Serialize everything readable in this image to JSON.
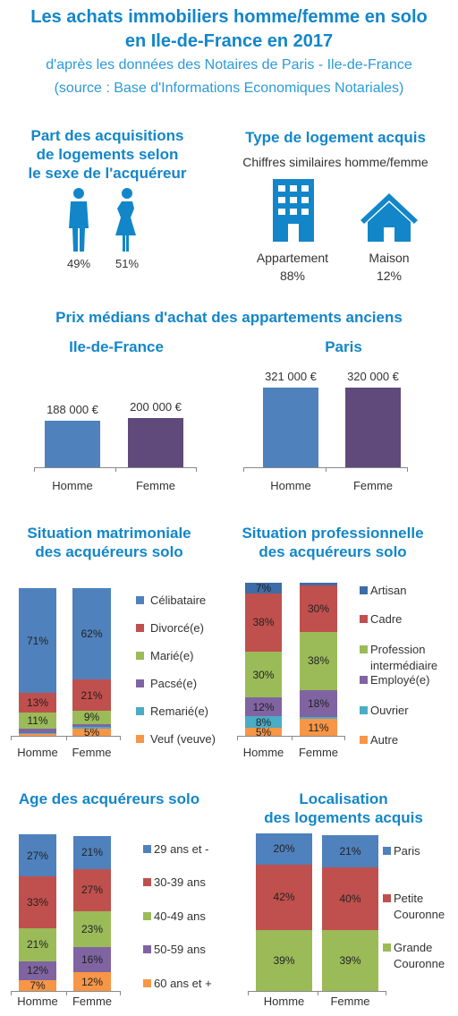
{
  "header": {
    "title": "Les achats immobiliers homme/femme en solo\nen Ile-de-France en 2017",
    "subtitle": "d'après les données des Notaires de Paris - Ile-de-France",
    "source": "(source : Base d'Informations Economiques Notariales)"
  },
  "gender": {
    "title": "Part des acquisitions\nde logements selon\nle sexe de l'acquéreur",
    "shares": [
      "49%",
      "51%"
    ]
  },
  "housing": {
    "title": "Type de logement acquis",
    "note": "Chiffres similaires homme/femme",
    "items": [
      {
        "name": "Appartement",
        "share": "88%"
      },
      {
        "name": "Maison",
        "share": "12%"
      }
    ]
  },
  "prices": {
    "title": "Prix médians d'achat des appartements anciens"
  },
  "chart_data": [
    {
      "type": "bar",
      "title": "Ile-de-France",
      "categories": [
        "Homme",
        "Femme"
      ],
      "values": [
        188000,
        200000
      ],
      "value_labels": [
        "188 000 €",
        "200 000 €"
      ],
      "colors": [
        "#4f81bd",
        "#604a7b"
      ]
    },
    {
      "type": "bar",
      "title": "Paris",
      "categories": [
        "Homme",
        "Femme"
      ],
      "values": [
        321000,
        320000
      ],
      "value_labels": [
        "321 000 €",
        "320 000 €"
      ],
      "colors": [
        "#4f81bd",
        "#604a7b"
      ]
    },
    {
      "type": "stacked_bar",
      "title": "Situation matrimoniale\ndes acquéreurs solo",
      "categories": [
        "Homme",
        "Femme"
      ],
      "series": [
        {
          "name": "Célibataire",
          "color": "#4f81bd",
          "values": [
            71,
            62
          ],
          "value_labels": [
            "71%",
            "62%"
          ]
        },
        {
          "name": "Divorcé(e)",
          "color": "#c0504d",
          "values": [
            13,
            21
          ],
          "value_labels": [
            "13%",
            "21%"
          ]
        },
        {
          "name": "Marié(e)",
          "color": "#9bbb59",
          "values": [
            11,
            9
          ],
          "value_labels": [
            "11%",
            "9%"
          ]
        },
        {
          "name": "Pacsé(e)",
          "color": "#8064a2",
          "values": [
            3,
            2
          ],
          "value_labels": [
            null,
            null
          ]
        },
        {
          "name": "Remarié(e)",
          "color": "#4bacc6",
          "values": [
            1,
            1
          ],
          "value_labels": [
            null,
            null
          ]
        },
        {
          "name": "Veuf (veuve)",
          "color": "#f79646",
          "values": [
            1,
            5
          ],
          "value_labels": [
            null,
            "5%"
          ]
        }
      ]
    },
    {
      "type": "stacked_bar",
      "title": "Situation professionnelle\ndes acquéreurs solo",
      "categories": [
        "Homme",
        "Femme"
      ],
      "series": [
        {
          "name": "Artisan",
          "color": "#3d6ca6",
          "values": [
            7,
            2
          ],
          "value_labels": [
            "7%",
            null
          ]
        },
        {
          "name": "Cadre",
          "color": "#c0504d",
          "values": [
            38,
            30
          ],
          "value_labels": [
            "38%",
            "30%"
          ]
        },
        {
          "name": "Profession\nintermédiaire",
          "color": "#9bbb59",
          "values": [
            30,
            38
          ],
          "value_labels": [
            "30%",
            "38%"
          ]
        },
        {
          "name": "Employé(e)",
          "color": "#8064a2",
          "values": [
            12,
            18
          ],
          "value_labels": [
            "12%",
            "18%"
          ]
        },
        {
          "name": "Ouvrier",
          "color": "#4bacc6",
          "values": [
            8,
            1
          ],
          "value_labels": [
            "8%",
            null
          ]
        },
        {
          "name": "Autre",
          "color": "#f79646",
          "values": [
            5,
            11
          ],
          "value_labels": [
            "5%",
            "11%"
          ]
        }
      ]
    },
    {
      "type": "stacked_bar",
      "title": "Age des acquéreurs solo",
      "categories": [
        "Homme",
        "Femme"
      ],
      "series": [
        {
          "name": "29 ans et -",
          "color": "#4f81bd",
          "values": [
            27,
            21
          ],
          "value_labels": [
            "27%",
            "21%"
          ]
        },
        {
          "name": "30-39 ans",
          "color": "#c0504d",
          "values": [
            33,
            27
          ],
          "value_labels": [
            "33%",
            "27%"
          ]
        },
        {
          "name": "40-49 ans",
          "color": "#9bbb59",
          "values": [
            21,
            23
          ],
          "value_labels": [
            "21%",
            "23%"
          ]
        },
        {
          "name": "50-59 ans",
          "color": "#8064a2",
          "values": [
            12,
            16
          ],
          "value_labels": [
            "12%",
            "16%"
          ]
        },
        {
          "name": "60 ans et +",
          "color": "#f79646",
          "values": [
            7,
            12
          ],
          "value_labels": [
            "7%",
            "12%"
          ]
        }
      ]
    },
    {
      "type": "stacked_bar",
      "title": "Localisation\ndes logements acquis",
      "categories": [
        "Homme",
        "Femme"
      ],
      "series": [
        {
          "name": "Paris",
          "color": "#4f81bd",
          "values": [
            20,
            21
          ],
          "value_labels": [
            "20%",
            "21%"
          ]
        },
        {
          "name": "Petite\nCouronne",
          "color": "#c0504d",
          "values": [
            42,
            40
          ],
          "value_labels": [
            "42%",
            "40%"
          ]
        },
        {
          "name": "Grande\nCouronne",
          "color": "#9bbb59",
          "values": [
            39,
            39
          ],
          "value_labels": [
            "39%",
            "39%"
          ]
        }
      ]
    }
  ]
}
